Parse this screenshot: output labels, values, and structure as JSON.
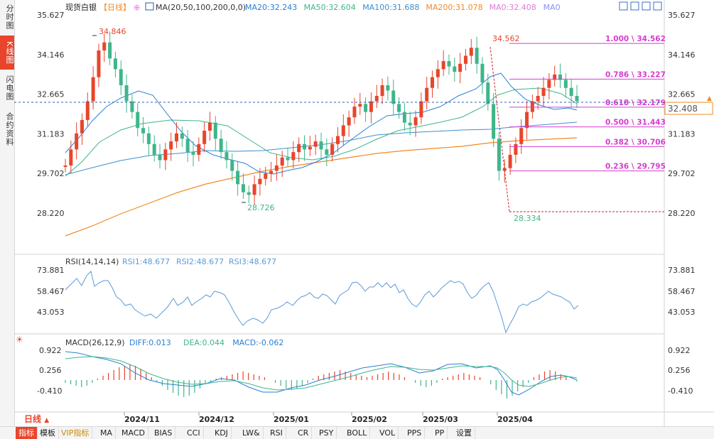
{
  "sidebar": {
    "tabs": [
      {
        "label": "分时图",
        "active": false
      },
      {
        "label": "K线图",
        "active": true
      },
      {
        "label": "闪电图",
        "active": false
      },
      {
        "label": "合约资料",
        "active": false
      }
    ]
  },
  "header": {
    "symbol": "现货白银",
    "period_tag": "【日线】",
    "ma_label": "MA(20,50,100,200,0,0)",
    "ma_values": [
      {
        "text": "MA20:32.243",
        "color": "#2a7fd4"
      },
      {
        "text": "MA50:32.604",
        "color": "#3fb58a"
      },
      {
        "text": "MA100:31.688",
        "color": "#3b8fd0"
      },
      {
        "text": "MA200:31.078",
        "color": "#f08a24"
      },
      {
        "text": "MA0:32.408",
        "color": "#e07ad8"
      },
      {
        "text": "MA0",
        "color": "#8a8ff0"
      }
    ]
  },
  "price_axis": {
    "labels": [
      "35.627",
      "34.146",
      "32.665",
      "31.183",
      "29.702",
      "28.220"
    ]
  },
  "current_price": "32.408",
  "fibonacci": [
    {
      "label": "1.000 \\ 34.562",
      "value": 34.562
    },
    {
      "label": "0.786 \\ 33.227",
      "value": 33.227
    },
    {
      "label": "0.618 \\ 32.179",
      "value": 32.179
    },
    {
      "label": "0.500 \\ 31.443",
      "value": 31.443
    },
    {
      "label": "0.382 \\ 30.706",
      "value": 30.706
    },
    {
      "label": "0.236 \\ 29.795",
      "value": 29.795
    }
  ],
  "annotations": {
    "high1": "34.846",
    "low1": "28.726",
    "high2": "34.562",
    "low2": "28.334"
  },
  "rsi": {
    "label": "RSI(14,14,14)",
    "values": [
      "RSI1:48.677",
      "RSI2:48.677",
      "RSI3:48.677"
    ],
    "axis": [
      "73.881",
      "58.467",
      "43.053"
    ]
  },
  "macd": {
    "label": "MACD(26,12,9)",
    "values": [
      {
        "text": "DIFF:0.013",
        "color": "#2a7fd4"
      },
      {
        "text": "DEA:0.044",
        "color": "#3fb58a"
      },
      {
        "text": "MACD:-0.062",
        "color": "#2a7fd4"
      }
    ],
    "axis": [
      "0.922",
      "0.256",
      "-0.410"
    ]
  },
  "dates": [
    "2024/11",
    "2024/12",
    "2025/01",
    "2025/02",
    "2025/03",
    "2025/04"
  ],
  "period_button": "日线",
  "bottom_tabs": [
    "指标",
    "模板",
    "VIP指标",
    "MA",
    "MACD",
    "BIAS",
    "CCI",
    "KDJ",
    "LW&",
    "RSI",
    "CR",
    "PSY",
    "BOLL",
    "VOL",
    "PPS",
    "PP",
    "设置"
  ],
  "chart_data": {
    "type": "candlestick",
    "title": "现货白银【日线】",
    "ylim": [
      28.22,
      35.627
    ],
    "x_ticks": [
      "2024/11",
      "2024/12",
      "2025/01",
      "2025/02",
      "2025/03",
      "2025/04"
    ],
    "close_series_approx": [
      30.2,
      31.6,
      32.8,
      34.1,
      33.5,
      32.2,
      31.0,
      30.6,
      31.1,
      30.3,
      30.9,
      31.4,
      30.5,
      29.5,
      28.9,
      29.7,
      30.3,
      30.8,
      30.6,
      31.1,
      31.6,
      32.3,
      32.9,
      32.0,
      31.3,
      32.3,
      33.1,
      33.8,
      34.4,
      33.6,
      32.6,
      29.8,
      30.8,
      32.4,
      33.2,
      32.9,
      32.4
    ],
    "ma_series": [
      {
        "name": "MA20",
        "last": 32.243
      },
      {
        "name": "MA50",
        "last": 32.604
      },
      {
        "name": "MA100",
        "last": 31.688
      },
      {
        "name": "MA200",
        "last": 31.078
      }
    ]
  }
}
